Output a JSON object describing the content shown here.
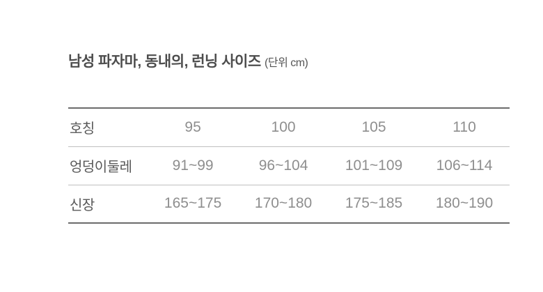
{
  "title": {
    "text": "남성 파자마, 동내의, 런닝 사이즈",
    "unit": "(단위 cm)"
  },
  "chart_data": {
    "type": "table",
    "title": "남성 파자마, 동내의, 런닝 사이즈 (단위 cm)",
    "rows": [
      {
        "label": "호칭",
        "values": [
          "95",
          "100",
          "105",
          "110"
        ]
      },
      {
        "label": "엉덩이둘레",
        "values": [
          "91~99",
          "96~104",
          "101~109",
          "106~114"
        ]
      },
      {
        "label": "신장",
        "values": [
          "165~175",
          "170~180",
          "175~185",
          "180~190"
        ]
      }
    ]
  },
  "colors": {
    "background": "#ffffff",
    "title_text": "#4d4d4d",
    "label_text": "#595959",
    "value_text": "#8e8e8e",
    "outer_border": "#6b6b6b",
    "inner_divider": "#bfbfbf"
  }
}
